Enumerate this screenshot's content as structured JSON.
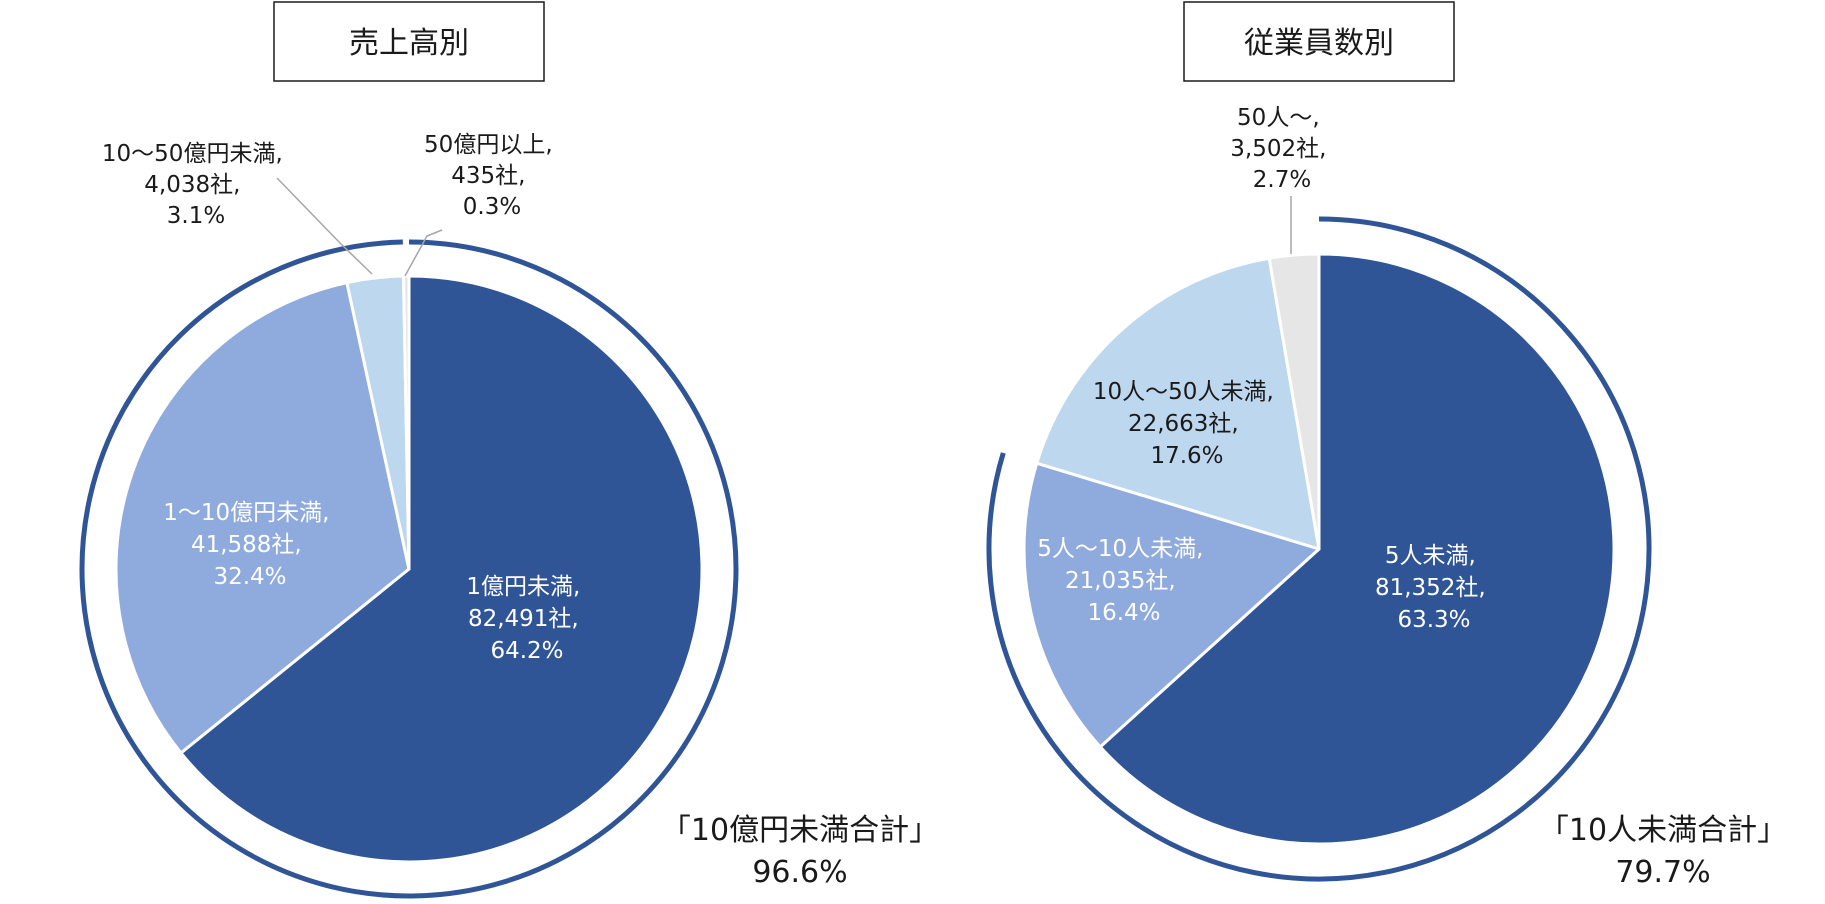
{
  "chart_data": [
    {
      "type": "pie",
      "title": "売上高別",
      "slices": [
        {
          "label": "1億円未満",
          "count": "82,491社",
          "percent": 64.2,
          "percent_text": "64.2%",
          "color": "#2f5597"
        },
        {
          "label": "1～10億円未満",
          "count": "41,588社",
          "percent": 32.4,
          "percent_text": "32.4%",
          "color": "#8faadc"
        },
        {
          "label": "10～50億円未満",
          "count": "4,038社",
          "percent": 3.1,
          "percent_text": "3.1%",
          "color": "#bdd7ee"
        },
        {
          "label": "50億円以上",
          "count": "435社",
          "percent": 0.3,
          "percent_text": "0.3%",
          "color": "#e7e6e6"
        }
      ],
      "total_label": "「10億円未満合計」",
      "total_value": "96.6%"
    },
    {
      "type": "pie",
      "title": "従業員数別",
      "slices": [
        {
          "label": "5人未満",
          "count": "81,352社",
          "percent": 63.3,
          "percent_text": "63.3%",
          "color": "#2f5597"
        },
        {
          "label": "5人～10人未満",
          "count": "21,035社",
          "percent": 16.4,
          "percent_text": "16.4%",
          "color": "#8faadc"
        },
        {
          "label": "10人～50人未満",
          "count": "22,663社",
          "percent": 17.6,
          "percent_text": "17.6%",
          "color": "#bdd7ee"
        },
        {
          "label": "50人～",
          "count": "3,502社",
          "percent": 2.7,
          "percent_text": "2.7%",
          "color": "#e7e6e6"
        }
      ],
      "total_label": "「10人未満合計」",
      "total_value": "79.7%"
    }
  ],
  "colors": {
    "ring": "#2f5597",
    "leader_line": "#a6a6a6",
    "slice_border": "#ffffff"
  }
}
